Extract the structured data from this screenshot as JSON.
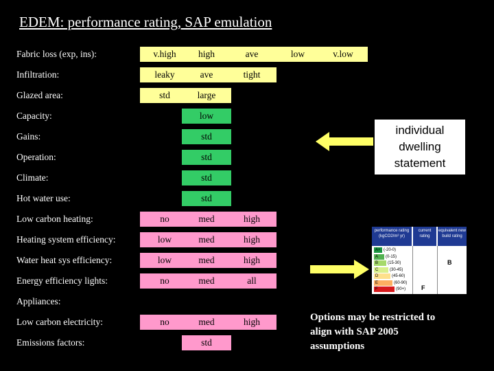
{
  "title": "EDEM: performance rating, SAP emulation",
  "rows": [
    {
      "label": "Fabric loss (exp, ins):",
      "cells": [
        {
          "text": "v.high",
          "color": "yellow"
        },
        {
          "text": "high",
          "color": "yellow"
        },
        {
          "text": "ave",
          "color": "yellow"
        },
        {
          "text": "low",
          "color": "yellow"
        },
        {
          "text": "v.low",
          "color": "yellow"
        }
      ]
    },
    {
      "label": "Infiltration:",
      "cells": [
        {
          "text": "leaky",
          "color": "yellow"
        },
        {
          "text": "ave",
          "color": "yellow"
        },
        {
          "text": "tight",
          "color": "yellow"
        }
      ]
    },
    {
      "label": "Glazed area:",
      "cells": [
        {
          "text": "std",
          "color": "yellow"
        },
        {
          "text": "large",
          "color": "yellow"
        }
      ]
    },
    {
      "label": "Capacity:",
      "cells": [
        {
          "text": "low",
          "color": "green"
        }
      ]
    },
    {
      "label": "Gains:",
      "cells": [
        {
          "text": "std",
          "color": "green"
        }
      ]
    },
    {
      "label": "Operation:",
      "cells": [
        {
          "text": "std",
          "color": "green"
        }
      ]
    },
    {
      "label": "Climate:",
      "cells": [
        {
          "text": "std",
          "color": "green"
        }
      ]
    },
    {
      "label": "Hot water use:",
      "cells": [
        {
          "text": "std",
          "color": "green"
        }
      ]
    },
    {
      "label": "Low carbon heating:",
      "cells": [
        {
          "text": "no",
          "color": "pink"
        },
        {
          "text": "med",
          "color": "pink"
        },
        {
          "text": "high",
          "color": "pink"
        }
      ]
    },
    {
      "label": "Heating system efficiency:",
      "cells": [
        {
          "text": "low",
          "color": "pink"
        },
        {
          "text": "med",
          "color": "pink"
        },
        {
          "text": "high",
          "color": "pink"
        }
      ]
    },
    {
      "label": "Water heat sys efficiency:",
      "cells": [
        {
          "text": "low",
          "color": "pink"
        },
        {
          "text": "med",
          "color": "pink"
        },
        {
          "text": "high",
          "color": "pink"
        }
      ]
    },
    {
      "label": "Energy efficiency lights:",
      "cells": [
        {
          "text": "no",
          "color": "pink"
        },
        {
          "text": "med",
          "color": "pink"
        },
        {
          "text": "all",
          "color": "pink"
        }
      ]
    },
    {
      "label": "Appliances:",
      "cells": []
    },
    {
      "label": "Low carbon electricity:",
      "cells": [
        {
          "text": "no",
          "color": "pink"
        },
        {
          "text": "med",
          "color": "pink"
        },
        {
          "text": "high",
          "color": "pink"
        }
      ]
    },
    {
      "label": "Emissions factors:",
      "cells": [
        {
          "text": "std",
          "color": "pink"
        }
      ]
    }
  ],
  "statement_box": {
    "line1": "individual",
    "line2": "dwelling",
    "line3": "statement"
  },
  "options_note": "Options may be restricted to align with SAP 2005 assumptions",
  "sap_chart": {
    "header_performance": "performance rating (kgCO2/m² yr)",
    "header_current": "current rating",
    "header_equivalent": "equivalent new build rating",
    "bands": [
      {
        "letter": "A+",
        "range": "(-20-0)",
        "color": "#1a9641"
      },
      {
        "letter": "A",
        "range": "(0-15)",
        "color": "#52b151"
      },
      {
        "letter": "B",
        "range": "(15-30)",
        "color": "#a6d96a"
      },
      {
        "letter": "C",
        "range": "(30-45)",
        "color": "#d9ef8b"
      },
      {
        "letter": "D",
        "range": "(45-60)",
        "color": "#fee08b"
      },
      {
        "letter": "E",
        "range": "(60-90)",
        "color": "#fdae61"
      },
      {
        "letter": "F",
        "range": "(90+)",
        "color": "#d7191c"
      }
    ],
    "current_rating": "F",
    "equivalent_rating": "B"
  },
  "colors": {
    "yellow": "#ffff99",
    "green": "#33cc66",
    "pink": "#ff99cc",
    "arrow": "#ffff66"
  }
}
